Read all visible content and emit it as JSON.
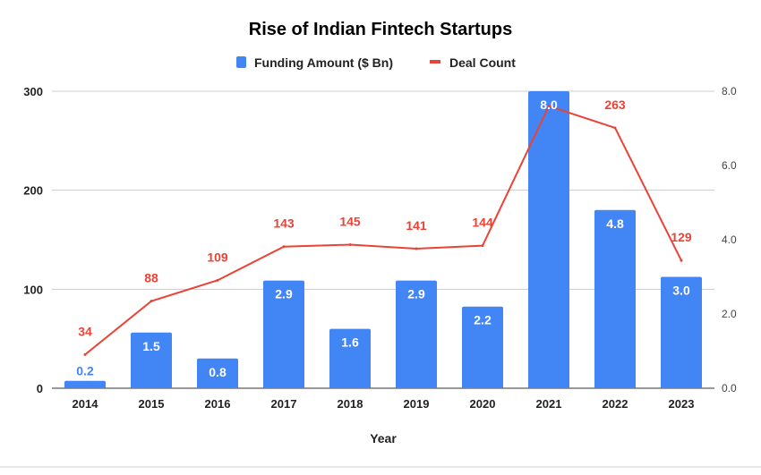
{
  "chart_data": {
    "type": "bar+line",
    "title": "Rise of Indian Fintech Startups",
    "xlabel": "Year",
    "categories": [
      "2014",
      "2015",
      "2016",
      "2017",
      "2018",
      "2019",
      "2020",
      "2021",
      "2022",
      "2023"
    ],
    "series": [
      {
        "name": "Funding Amount ($ Bn)",
        "type": "bar",
        "axis": "right",
        "color": "#4285f4",
        "values": [
          0.2,
          1.5,
          0.8,
          2.9,
          1.6,
          2.9,
          2.2,
          8.0,
          4.8,
          3.0
        ],
        "labels": [
          "0.2",
          "1.5",
          "0.8",
          "2.9",
          "1.6",
          "2.9",
          "2.2",
          "8.0",
          "4.8",
          "3.0"
        ]
      },
      {
        "name": "Deal Count",
        "type": "line",
        "axis": "left",
        "color": "#ea4335",
        "values": [
          34,
          88,
          109,
          143,
          145,
          141,
          144,
          285,
          263,
          129
        ],
        "labels": [
          "34",
          "88",
          "109",
          "143",
          "145",
          "141",
          "144",
          "",
          "263",
          "129"
        ]
      }
    ],
    "left_axis": {
      "range": [
        0,
        300
      ],
      "ticks": [
        "0",
        "100",
        "200",
        "300"
      ]
    },
    "right_axis": {
      "range": [
        0,
        8
      ],
      "ticks": [
        "0.0",
        "2.0",
        "4.0",
        "6.0",
        "8.0"
      ]
    },
    "grid": true,
    "legend": "top"
  }
}
